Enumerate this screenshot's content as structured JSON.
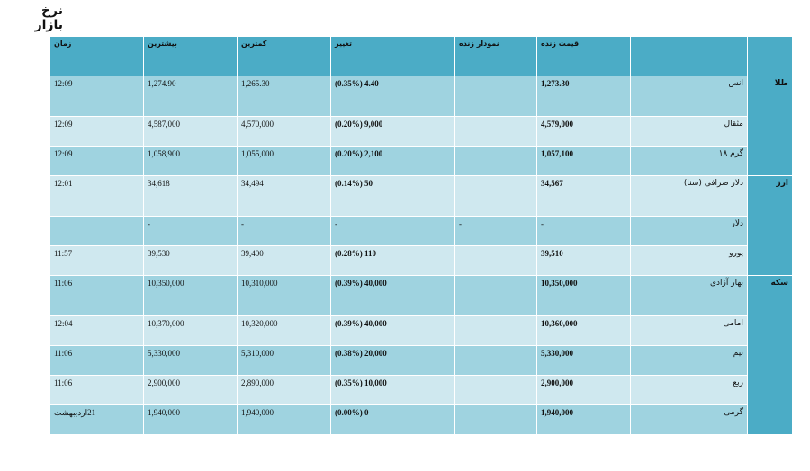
{
  "page_title": "نرخ بازار",
  "headers": {
    "group": "",
    "name": "",
    "live_price": "قیمت زنده",
    "live_chart": "نمودار زنده",
    "change": "تغییر",
    "min": "کمترین",
    "max": "بیشترین",
    "time": "زمان"
  },
  "groups": [
    {
      "label": "طلا",
      "rows": [
        {
          "name": "انس",
          "live_price": "1,273.30",
          "live_chart": "",
          "change": "4.40 (0.35%)",
          "min": "1,265.30",
          "max": "1,274.90",
          "time": "12:09"
        },
        {
          "name": "مثقال",
          "live_price": "4,579,000",
          "live_chart": "",
          "change": "9,000 (0.20%)",
          "min": "4,570,000",
          "max": "4,587,000",
          "time": "12:09"
        },
        {
          "name": "گرم ۱۸",
          "live_price": "1,057,100",
          "live_chart": "",
          "change": "2,100 (0.20%)",
          "min": "1,055,000",
          "max": "1,058,900",
          "time": "12:09"
        }
      ]
    },
    {
      "label": "ارز",
      "rows": [
        {
          "name": "دلار صرافی (سنا)",
          "live_price": "34,567",
          "live_chart": "",
          "change": "50 (0.14%)",
          "min": "34,494",
          "max": "34,618",
          "time": "12:01"
        },
        {
          "name": "دلار",
          "live_price": "-",
          "live_chart": "-",
          "change": "-",
          "min": "-",
          "max": "-",
          "time": ""
        },
        {
          "name": "یورو",
          "live_price": "39,510",
          "live_chart": "",
          "change": "110 (0.28%)",
          "min": "39,400",
          "max": "39,530",
          "time": "11:57"
        }
      ]
    },
    {
      "label": "سکه",
      "rows": [
        {
          "name": "بهار آزادی",
          "live_price": "10,350,000",
          "live_chart": "",
          "change": "40,000 (0.39%)",
          "min": "10,310,000",
          "max": "10,350,000",
          "time": "11:06"
        },
        {
          "name": "امامی",
          "live_price": "10,360,000",
          "live_chart": "",
          "change": "40,000 (0.39%)",
          "min": "10,320,000",
          "max": "10,370,000",
          "time": "12:04"
        },
        {
          "name": "نیم",
          "live_price": "5,330,000",
          "live_chart": "",
          "change": "20,000 (0.38%)",
          "min": "5,310,000",
          "max": "5,330,000",
          "time": "11:06"
        },
        {
          "name": "ربع",
          "live_price": "2,900,000",
          "live_chart": "",
          "change": "10,000 (0.35%)",
          "min": "2,890,000",
          "max": "2,900,000",
          "time": "11:06"
        },
        {
          "name": "گرمی",
          "live_price": "1,940,000",
          "live_chart": "",
          "change": "0 (0.00%)",
          "min": "1,940,000",
          "max": "1,940,000",
          "time": "21اردیبهشت"
        }
      ]
    }
  ],
  "colors": {
    "header_bg": "#4bacc6",
    "row_dark": "#9fd3e0",
    "row_light": "#cfe8ef"
  }
}
